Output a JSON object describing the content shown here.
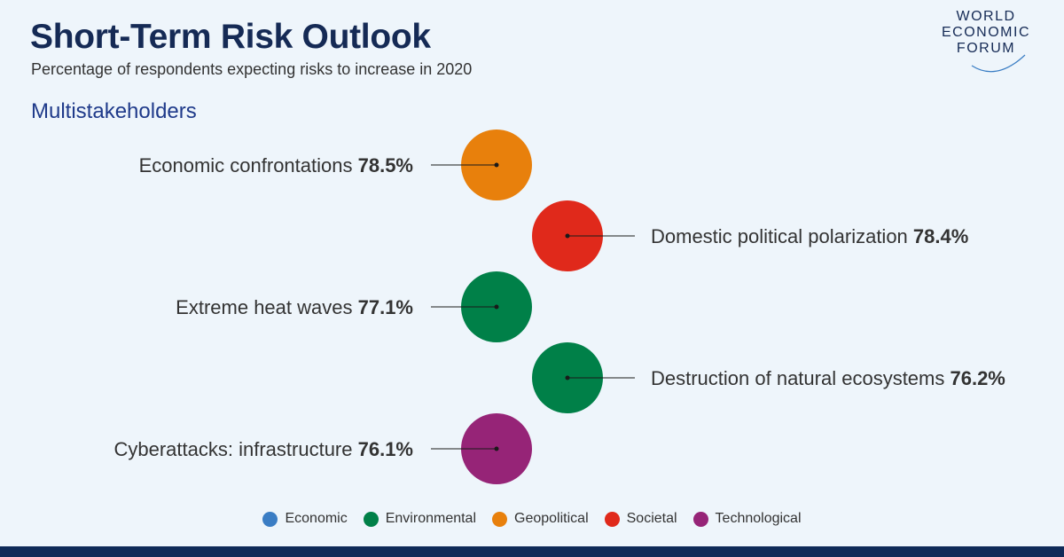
{
  "header": {
    "title": "Short-Term Risk Outlook",
    "subtitle": "Percentage of respondents expecting risks to increase in 2020",
    "section": "Multistakeholders"
  },
  "logo": {
    "line1": "WORLD",
    "line2": "ECONOMIC",
    "line3": "FORUM"
  },
  "colors": {
    "Economic": "#3a7dc4",
    "Environmental": "#008048",
    "Geopolitical": "#e8800c",
    "Societal": "#e0291b",
    "Technological": "#962477"
  },
  "chart_data": {
    "type": "scatter",
    "title": "Short-Term Risk Outlook",
    "subtitle": "Percentage of respondents expecting risks to increase in 2020",
    "unit": "%",
    "points": [
      {
        "label": "Economic confrontations",
        "value": 78.5,
        "value_text": "78.5%",
        "category": "Geopolitical",
        "side": "left"
      },
      {
        "label": "Domestic political polarization",
        "value": 78.4,
        "value_text": "78.4%",
        "category": "Societal",
        "side": "right"
      },
      {
        "label": "Extreme heat waves",
        "value": 77.1,
        "value_text": "77.1%",
        "category": "Environmental",
        "side": "left"
      },
      {
        "label": "Destruction of natural ecosystems",
        "value": 76.2,
        "value_text": "76.2%",
        "category": "Environmental",
        "side": "right"
      },
      {
        "label": "Cyberattacks: infrastructure",
        "value": 76.1,
        "value_text": "76.1%",
        "category": "Technological",
        "side": "left"
      }
    ],
    "legend": [
      "Economic",
      "Environmental",
      "Geopolitical",
      "Societal",
      "Technological"
    ],
    "legend_position": "bottom"
  }
}
